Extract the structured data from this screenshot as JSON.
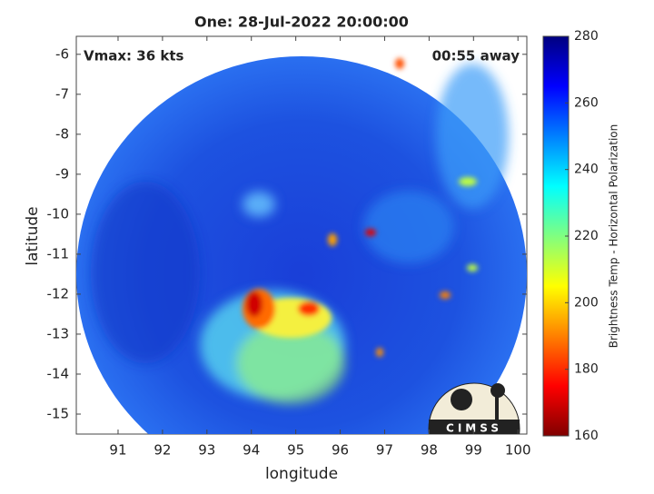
{
  "chart_data": {
    "type": "image",
    "title": "One: 28-Jul-2022 20:00:00",
    "xlabel": "longitude",
    "ylabel": "latitude",
    "annotations": [
      "Vmax: 36 kts",
      "00:55 away"
    ],
    "xlim": [
      90.06,
      100.2
    ],
    "ylim": [
      -15.5,
      -5.55
    ],
    "xticks": [
      91,
      92,
      93,
      94,
      95,
      96,
      97,
      98,
      99,
      100
    ],
    "yticks": [
      -6,
      -7,
      -8,
      -9,
      -10,
      -11,
      -12,
      -13,
      -14,
      -15
    ],
    "colorbar": {
      "label": "Brightness Temp - Horizontal Polarization",
      "lim": [
        160,
        280
      ],
      "ticks": [
        160,
        180,
        200,
        220,
        240,
        260,
        280
      ],
      "colormap": [
        "#800000",
        "#ff0000",
        "#ff8000",
        "#ffff00",
        "#80ff80",
        "#00ffff",
        "#0080ff",
        "#0000ff",
        "#000080"
      ]
    },
    "logo": "CIMSS"
  }
}
